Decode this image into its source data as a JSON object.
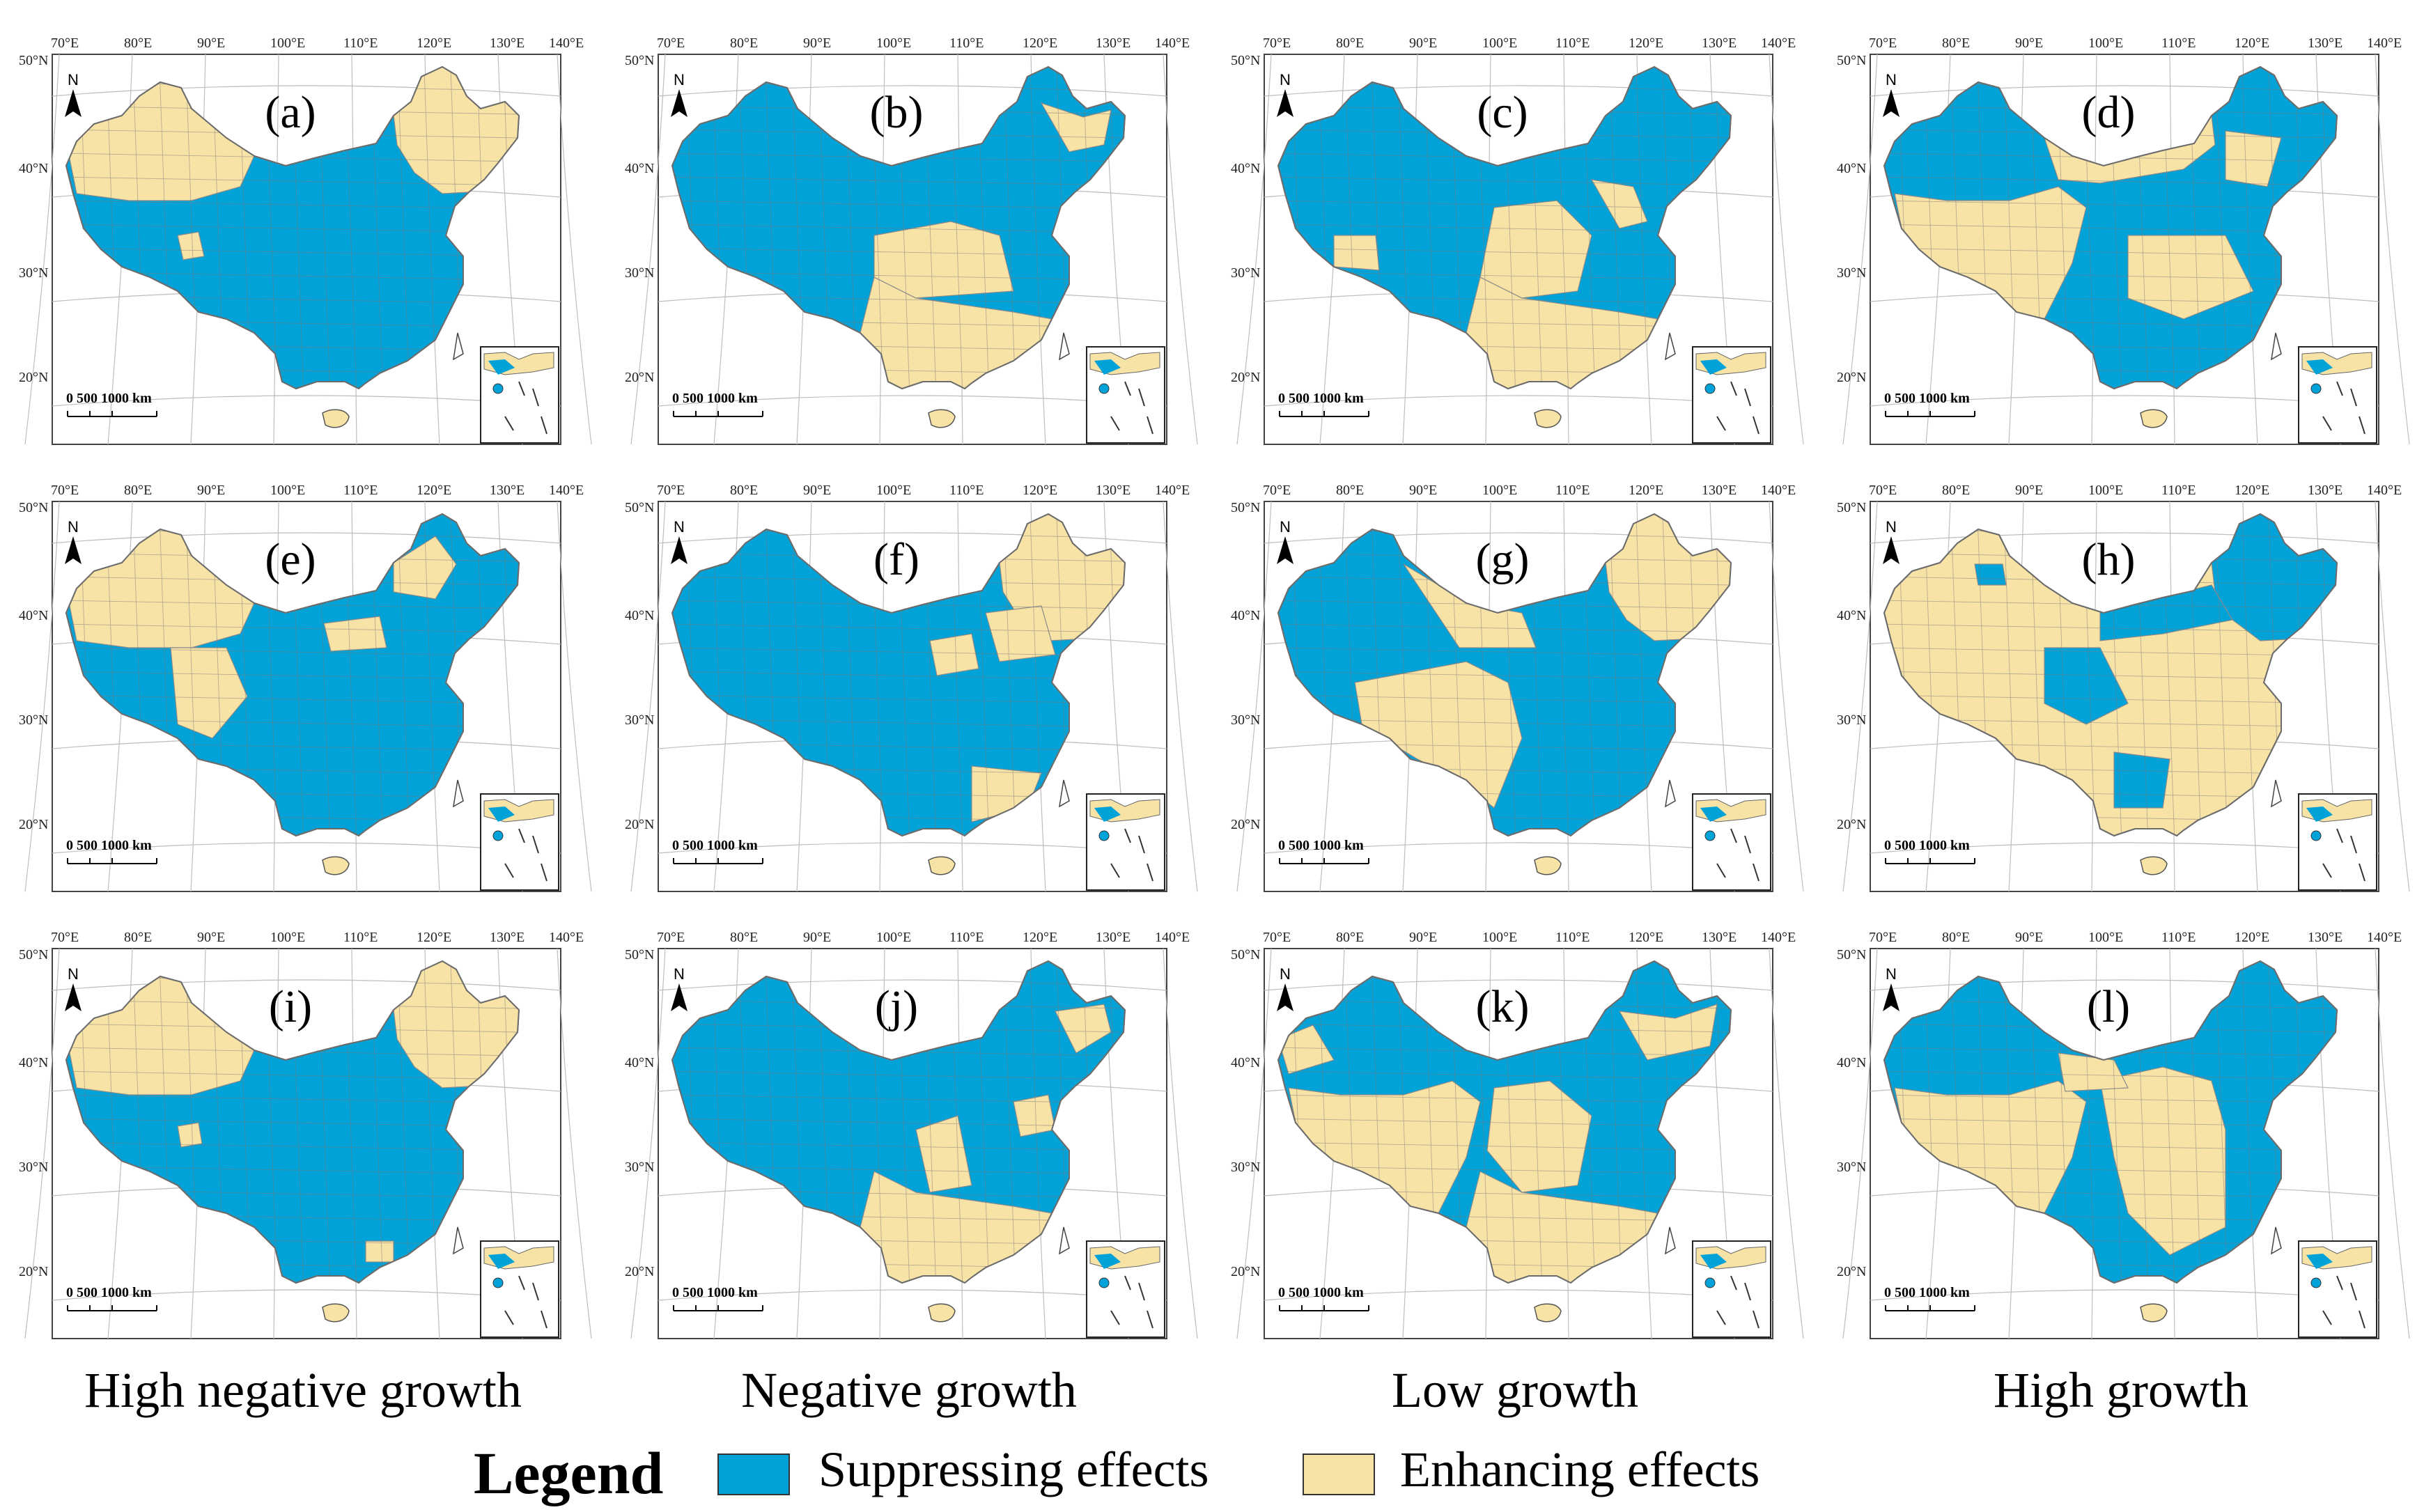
{
  "colors": {
    "suppressing": "#00a2d8",
    "enhancing": "#f8e3a6",
    "border": "#8a8a8a",
    "grid": "#bdbdbd"
  },
  "axes": {
    "lon_ticks": [
      "70°E",
      "80°E",
      "90°E",
      "100°E",
      "110°E",
      "120°E",
      "130°E",
      "140°E"
    ],
    "lat_ticks": [
      "50°N",
      "40°N",
      "30°N",
      "20°N"
    ]
  },
  "map_text": {
    "north": "N",
    "scale_label": "0   500  1000  km"
  },
  "panels": [
    {
      "label": "(a)",
      "pattern": "a"
    },
    {
      "label": "(b)",
      "pattern": "b"
    },
    {
      "label": "(c)",
      "pattern": "c"
    },
    {
      "label": "(d)",
      "pattern": "d"
    },
    {
      "label": "(e)",
      "pattern": "e"
    },
    {
      "label": "(f)",
      "pattern": "f"
    },
    {
      "label": "(g)",
      "pattern": "g"
    },
    {
      "label": "(h)",
      "pattern": "h"
    },
    {
      "label": "(i)",
      "pattern": "i"
    },
    {
      "label": "(j)",
      "pattern": "j"
    },
    {
      "label": "(k)",
      "pattern": "k"
    },
    {
      "label": "(l)",
      "pattern": "l"
    }
  ],
  "column_titles": [
    "High negative growth",
    "Negative growth",
    "Low growth",
    "High growth"
  ],
  "legend": {
    "title": "Legend",
    "suppressing": "Suppressing effects",
    "enhancing": "Enhancing effects"
  }
}
